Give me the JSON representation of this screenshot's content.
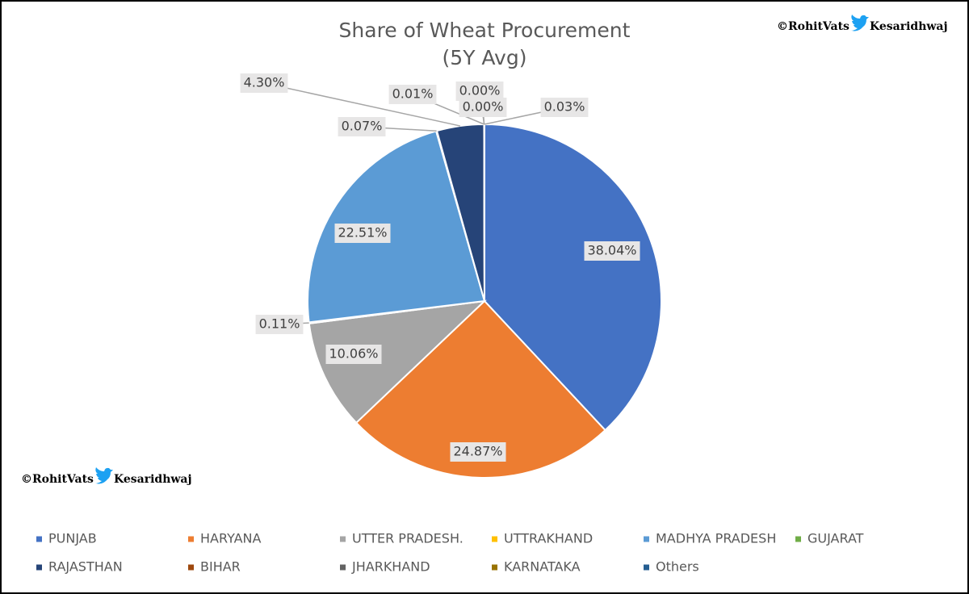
{
  "chart_data": {
    "type": "pie",
    "title": "Share of Wheat Procurement",
    "subtitle": "(5Y Avg)",
    "categories": [
      "PUNJAB",
      "HARYANA",
      "UTTER PRADESH.",
      "UTTRAKHAND",
      "MADHYA PRADESH",
      "GUJARAT",
      "RAJASTHAN",
      "BIHAR",
      "JHARKHAND",
      "KARNATAKA",
      "Others"
    ],
    "values": [
      38.04,
      24.87,
      10.06,
      0.11,
      22.51,
      0.07,
      4.3,
      0.01,
      0.0,
      0.0,
      0.03
    ],
    "value_labels": [
      "38.04%",
      "24.87%",
      "10.06%",
      "0.11%",
      "22.51%",
      "0.07%",
      "4.30%",
      "0.01%",
      "0.00%",
      "0.00%",
      "0.03%"
    ],
    "colors": [
      "#4472c4",
      "#ed7d31",
      "#a5a5a5",
      "#ffc000",
      "#5b9bd5",
      "#70ad47",
      "#264478",
      "#9e480e",
      "#636363",
      "#997300",
      "#255e91"
    ],
    "legend": "bottom"
  },
  "credits": {
    "author": "©RohitVats",
    "handle": "Kesaridhwaj"
  }
}
